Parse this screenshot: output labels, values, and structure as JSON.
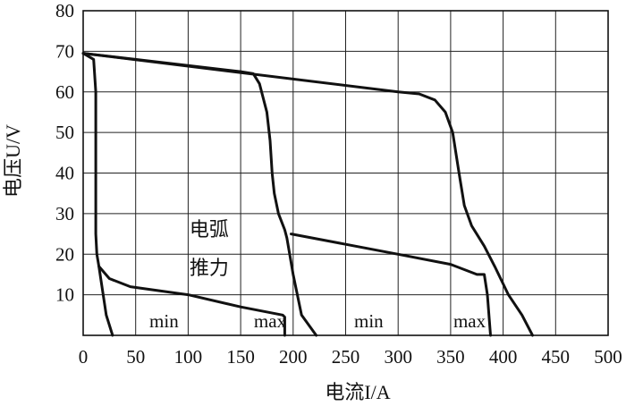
{
  "chart_data": {
    "type": "line",
    "title": "",
    "xlabel": "电流I/A",
    "ylabel": "电压U/V",
    "xlim": [
      0,
      500
    ],
    "ylim": [
      0,
      80
    ],
    "xticks": [
      0,
      50,
      100,
      150,
      200,
      250,
      300,
      350,
      400,
      450,
      500
    ],
    "yticks": [
      10,
      20,
      30,
      40,
      50,
      60,
      70,
      80
    ],
    "grid": true,
    "legend": "none",
    "series": [
      {
        "id": "small-range-min",
        "points": [
          [
            0,
            69.5
          ],
          [
            10,
            68
          ],
          [
            12,
            60
          ],
          [
            12,
            40
          ],
          [
            12,
            25
          ],
          [
            13,
            20
          ],
          [
            15,
            17
          ],
          [
            22,
            5
          ],
          [
            28,
            0
          ]
        ]
      },
      {
        "id": "small-range-max",
        "points": [
          [
            0,
            69.5
          ],
          [
            150,
            65
          ],
          [
            162,
            64.5
          ],
          [
            168,
            62
          ],
          [
            175,
            55
          ],
          [
            178,
            48
          ],
          [
            180,
            40
          ],
          [
            182,
            35
          ],
          [
            186,
            30
          ],
          [
            192,
            26
          ],
          [
            194,
            24
          ],
          [
            200,
            15
          ],
          [
            208,
            5
          ],
          [
            222,
            0
          ]
        ]
      },
      {
        "id": "small-range-arc-force",
        "points": [
          [
            15,
            17
          ],
          [
            25,
            14
          ],
          [
            45,
            12
          ],
          [
            100,
            10
          ],
          [
            150,
            7
          ],
          [
            190,
            5
          ],
          [
            192,
            4.5
          ],
          [
            192,
            0
          ]
        ]
      },
      {
        "id": "large-range-max",
        "points": [
          [
            0,
            69.5
          ],
          [
            300,
            60
          ],
          [
            320,
            59.5
          ],
          [
            335,
            58
          ],
          [
            345,
            55
          ],
          [
            352,
            50
          ],
          [
            358,
            40
          ],
          [
            363,
            32
          ],
          [
            370,
            27
          ],
          [
            382,
            22
          ],
          [
            392,
            17
          ],
          [
            405,
            10
          ],
          [
            418,
            5
          ],
          [
            428,
            0
          ]
        ]
      },
      {
        "id": "large-range-arc-force",
        "points": [
          [
            198,
            25
          ],
          [
            300,
            20
          ],
          [
            350,
            17.5
          ],
          [
            375,
            15
          ],
          [
            382,
            15
          ],
          [
            385,
            10
          ],
          [
            388,
            0
          ]
        ]
      }
    ],
    "annotations": [
      {
        "id": "arc-force-line1",
        "text": "电弧",
        "x": 120,
        "y": 24.5
      },
      {
        "id": "arc-force-line2",
        "text": "推力",
        "x": 120,
        "y": 15
      },
      {
        "id": "min-left",
        "text": "min",
        "x": 77,
        "y": 2
      },
      {
        "id": "max-left",
        "text": "max",
        "x": 178,
        "y": 2
      },
      {
        "id": "min-right",
        "text": "min",
        "x": 272,
        "y": 2
      },
      {
        "id": "max-right",
        "text": "max",
        "x": 368,
        "y": 2
      }
    ]
  }
}
